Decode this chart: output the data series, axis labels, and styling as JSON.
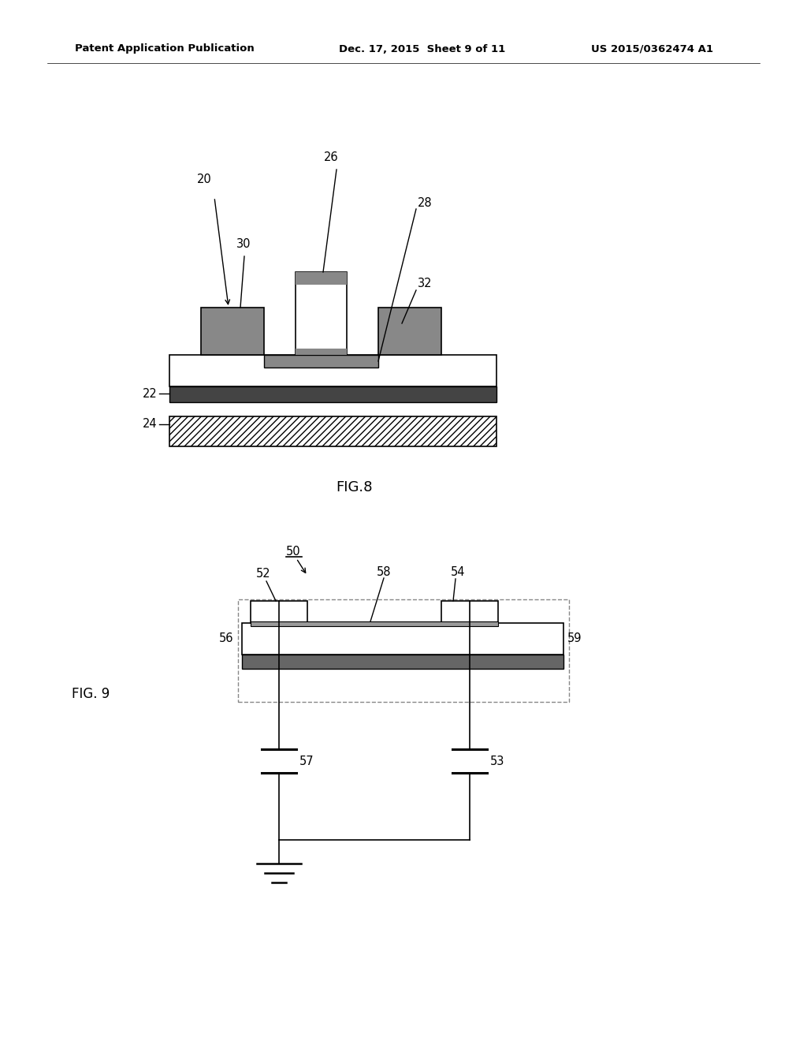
{
  "background_color": "#ffffff",
  "header_left": "Patent Application Publication",
  "header_center": "Dec. 17, 2015  Sheet 9 of 11",
  "header_right": "US 2015/0362474 A1",
  "fig8_label": "FIG.8",
  "fig9_label": "FIG. 9"
}
